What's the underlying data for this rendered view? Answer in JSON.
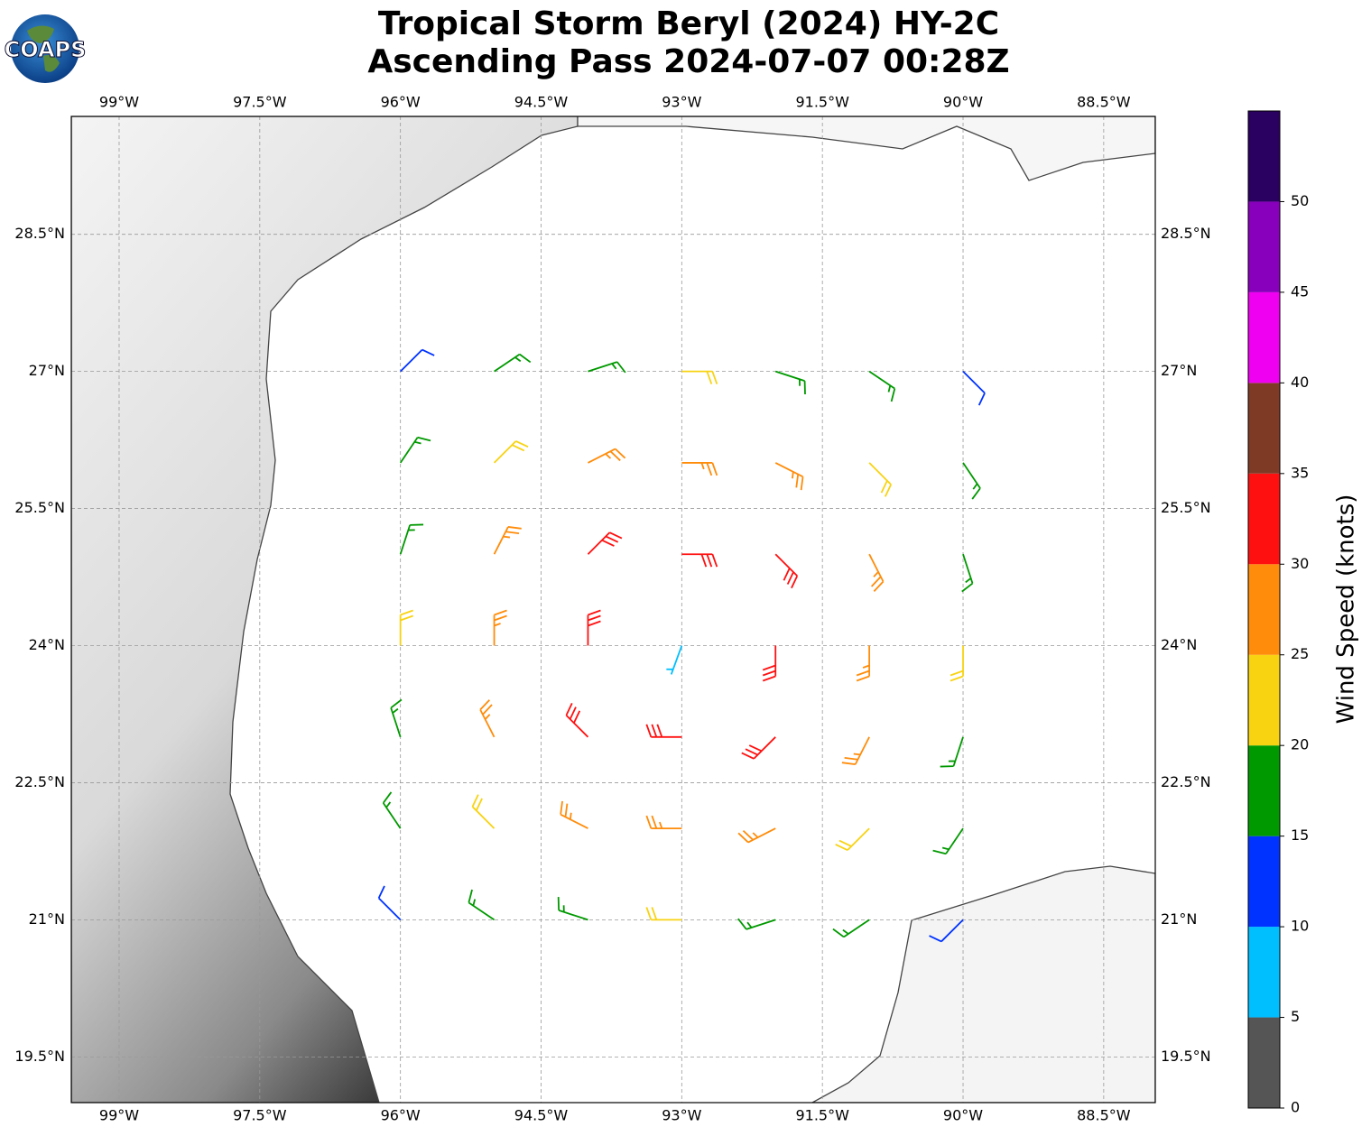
{
  "header": {
    "logo": "COAPS",
    "title": [
      "Tropical Storm Beryl (2024) HY-2C",
      "Ascending Pass 2024-07-07 00:28Z"
    ]
  },
  "map": {
    "xlim": [
      -99.51,
      -87.95
    ],
    "ylim": [
      19.0,
      29.79
    ],
    "xticks": [
      {
        "value": -99,
        "label": "99°W"
      },
      {
        "value": -97.5,
        "label": "97.5°W"
      },
      {
        "value": -96,
        "label": "96°W"
      },
      {
        "value": -94.5,
        "label": "94.5°W"
      },
      {
        "value": -93,
        "label": "93°W"
      },
      {
        "value": -91.5,
        "label": "91.5°W"
      },
      {
        "value": -90,
        "label": "90°W"
      },
      {
        "value": -88.5,
        "label": "88.5°W"
      }
    ],
    "yticks": [
      {
        "value": 19.5,
        "label": "19.5°N"
      },
      {
        "value": 21,
        "label": "21°N"
      },
      {
        "value": 22.5,
        "label": "22.5°N"
      },
      {
        "value": 24,
        "label": "24°N"
      },
      {
        "value": 25.5,
        "label": "25.5°N"
      },
      {
        "value": 27,
        "label": "27°N"
      },
      {
        "value": 28.5,
        "label": "28.5°N"
      }
    ],
    "grid": true,
    "barbs": [
      {
        "lon": -96,
        "lat": 27,
        "speed": 14,
        "dir": 45
      },
      {
        "lon": -95,
        "lat": 27,
        "speed": 17,
        "dir": 56
      },
      {
        "lon": -94,
        "lat": 27,
        "speed": 18,
        "dir": 72
      },
      {
        "lon": -93,
        "lat": 27,
        "speed": 20,
        "dir": 90
      },
      {
        "lon": -92,
        "lat": 27,
        "speed": 18,
        "dir": 108
      },
      {
        "lon": -91,
        "lat": 27,
        "speed": 17,
        "dir": 124
      },
      {
        "lon": -90,
        "lat": 27,
        "speed": 14,
        "dir": 135
      },
      {
        "lon": -96,
        "lat": 26,
        "speed": 17,
        "dir": 34
      },
      {
        "lon": -95,
        "lat": 26,
        "speed": 22,
        "dir": 45
      },
      {
        "lon": -94,
        "lat": 26,
        "speed": 25,
        "dir": 63
      },
      {
        "lon": -93,
        "lat": 26,
        "speed": 25,
        "dir": 90
      },
      {
        "lon": -92,
        "lat": 26,
        "speed": 25,
        "dir": 117
      },
      {
        "lon": -91,
        "lat": 26,
        "speed": 22,
        "dir": 135
      },
      {
        "lon": -90,
        "lat": 26,
        "speed": 17,
        "dir": 146
      },
      {
        "lon": -96,
        "lat": 25,
        "speed": 18,
        "dir": 18
      },
      {
        "lon": -95,
        "lat": 25,
        "speed": 25,
        "dir": 27
      },
      {
        "lon": -94,
        "lat": 25,
        "speed": 30,
        "dir": 45
      },
      {
        "lon": -93,
        "lat": 25,
        "speed": 30,
        "dir": 90
      },
      {
        "lon": -92,
        "lat": 25,
        "speed": 30,
        "dir": 135
      },
      {
        "lon": -91,
        "lat": 25,
        "speed": 25,
        "dir": 153
      },
      {
        "lon": -90,
        "lat": 25,
        "speed": 18,
        "dir": 162
      },
      {
        "lon": -96,
        "lat": 24,
        "speed": 20,
        "dir": 0
      },
      {
        "lon": -95,
        "lat": 24,
        "speed": 25,
        "dir": 0
      },
      {
        "lon": -94,
        "lat": 24,
        "speed": 30,
        "dir": 0
      },
      {
        "lon": -93,
        "lat": 24,
        "speed": 5,
        "dir": 200
      },
      {
        "lon": -92,
        "lat": 24,
        "speed": 30,
        "dir": 180
      },
      {
        "lon": -91,
        "lat": 24,
        "speed": 25,
        "dir": 180
      },
      {
        "lon": -90,
        "lat": 24,
        "speed": 20,
        "dir": 180
      },
      {
        "lon": -96,
        "lat": 23,
        "speed": 18,
        "dir": 342
      },
      {
        "lon": -95,
        "lat": 23,
        "speed": 25,
        "dir": 333
      },
      {
        "lon": -94,
        "lat": 23,
        "speed": 30,
        "dir": 315
      },
      {
        "lon": -93,
        "lat": 23,
        "speed": 30,
        "dir": 270
      },
      {
        "lon": -92,
        "lat": 23,
        "speed": 30,
        "dir": 225
      },
      {
        "lon": -91,
        "lat": 23,
        "speed": 25,
        "dir": 207
      },
      {
        "lon": -90,
        "lat": 23,
        "speed": 18,
        "dir": 198
      },
      {
        "lon": -96,
        "lat": 22,
        "speed": 17,
        "dir": 326
      },
      {
        "lon": -95,
        "lat": 22,
        "speed": 22,
        "dir": 315
      },
      {
        "lon": -94,
        "lat": 22,
        "speed": 25,
        "dir": 297
      },
      {
        "lon": -93,
        "lat": 22,
        "speed": 25,
        "dir": 270
      },
      {
        "lon": -92,
        "lat": 22,
        "speed": 25,
        "dir": 243
      },
      {
        "lon": -91,
        "lat": 22,
        "speed": 22,
        "dir": 225
      },
      {
        "lon": -90,
        "lat": 22,
        "speed": 17,
        "dir": 214
      },
      {
        "lon": -96,
        "lat": 21,
        "speed": 14,
        "dir": 315
      },
      {
        "lon": -95,
        "lat": 21,
        "speed": 17,
        "dir": 304
      },
      {
        "lon": -94,
        "lat": 21,
        "speed": 18,
        "dir": 288
      },
      {
        "lon": -93,
        "lat": 21,
        "speed": 20,
        "dir": 270
      },
      {
        "lon": -92,
        "lat": 21,
        "speed": 18,
        "dir": 252
      },
      {
        "lon": -91,
        "lat": 21,
        "speed": 17,
        "dir": 236
      },
      {
        "lon": -90,
        "lat": 21,
        "speed": 14,
        "dir": 225
      }
    ]
  },
  "colorbar": {
    "label": "Wind Speed (knots)",
    "lim": [
      0,
      55
    ],
    "bounds": [
      0,
      5,
      10,
      15,
      20,
      25,
      30,
      35,
      40,
      45,
      50,
      55
    ],
    "colors": [
      "#555555",
      "#00bfff",
      "#0033ff",
      "#009900",
      "#f8d312",
      "#ff8c0a",
      "#ff1010",
      "#7f3a26",
      "#f000f0",
      "#8800bb",
      "#2a0060"
    ],
    "ticks": [
      0,
      5,
      10,
      15,
      20,
      25,
      30,
      35,
      40,
      45,
      50
    ]
  }
}
